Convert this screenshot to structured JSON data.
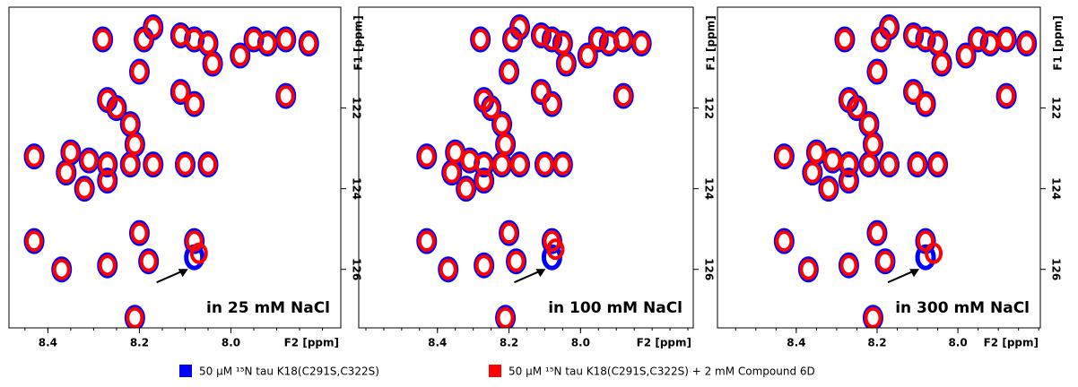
{
  "chart_data": [
    {
      "type": "scatter",
      "annotation": "in 25 mM NaCl",
      "x_label": "F2 [ppm]",
      "y_label": "F1 [ppm]",
      "xlim": [
        8.485,
        7.76
      ],
      "ylim": [
        119.5,
        127.45
      ],
      "y_inverted": true,
      "xticks": [
        8.4,
        8.2,
        {
          "value": 8,
          "label": "8.0"
        }
      ],
      "yticks": [
        122,
        124,
        126
      ],
      "series": [
        {
          "name": "50 µM ¹⁵N tau K18(C291S,C322S)",
          "color": "#0000ff",
          "x": [
            8.28,
            8.19,
            8.17,
            8.11,
            8.08,
            8.05,
            8.04,
            7.98,
            7.95,
            7.92,
            7.88,
            7.83,
            8.2,
            8.11,
            8.08,
            7.88,
            8.27,
            8.25,
            8.22,
            8.21,
            8.43,
            8.35,
            8.31,
            8.27,
            8.22,
            8.17,
            8.1,
            8.05,
            8.36,
            8.32,
            8.27,
            8.43,
            8.37,
            8.27,
            8.2,
            8.18,
            8.08,
            8.08,
            8.21
          ],
          "values": [
            120.3,
            120.3,
            120.0,
            120.2,
            120.3,
            120.4,
            120.9,
            120.7,
            120.3,
            120.4,
            120.3,
            120.4,
            121.1,
            121.6,
            121.9,
            121.7,
            121.8,
            122.0,
            122.4,
            122.9,
            123.2,
            123.1,
            123.3,
            123.4,
            123.4,
            123.4,
            123.4,
            123.4,
            123.6,
            124.0,
            123.8,
            125.3,
            126.0,
            125.9,
            125.1,
            125.8,
            125.3,
            125.7,
            127.2
          ]
        },
        {
          "name": "50 µM ¹⁵N tau K18(C291S,C322S) + 2 mM Compound 6D",
          "color": "#ff0000",
          "x": [
            8.28,
            8.19,
            8.17,
            8.11,
            8.08,
            8.05,
            8.04,
            7.98,
            7.95,
            7.92,
            7.88,
            7.83,
            8.2,
            8.11,
            8.08,
            7.88,
            8.27,
            8.25,
            8.22,
            8.21,
            8.43,
            8.35,
            8.31,
            8.27,
            8.22,
            8.17,
            8.1,
            8.05,
            8.36,
            8.32,
            8.27,
            8.43,
            8.37,
            8.27,
            8.2,
            8.18,
            8.08,
            8.07,
            8.21
          ],
          "values": [
            120.3,
            120.3,
            120.0,
            120.2,
            120.3,
            120.4,
            120.9,
            120.7,
            120.3,
            120.4,
            120.3,
            120.4,
            121.1,
            121.6,
            121.9,
            121.7,
            121.8,
            122.0,
            122.4,
            122.9,
            123.2,
            123.1,
            123.3,
            123.4,
            123.4,
            123.4,
            123.4,
            123.4,
            123.6,
            124.0,
            123.8,
            125.3,
            126.0,
            125.9,
            125.1,
            125.8,
            125.3,
            125.6,
            127.2
          ]
        }
      ]
    },
    {
      "type": "scatter",
      "annotation": "in 100 mM NaCl",
      "x_label": "F2 [ppm]",
      "y_label": "F1 [ppm]",
      "xlim": [
        8.62,
        7.685
      ],
      "ylim": [
        119.5,
        127.45
      ],
      "y_inverted": true,
      "xticks": [
        8.4,
        8.2,
        {
          "value": 8,
          "label": "8.0"
        }
      ],
      "yticks": [
        122,
        124,
        126
      ],
      "series": [
        {
          "color": "#0000ff",
          "x": [
            8.28,
            8.19,
            8.17,
            8.11,
            8.08,
            8.05,
            8.04,
            7.98,
            7.95,
            7.92,
            7.88,
            7.83,
            8.2,
            8.11,
            8.08,
            7.88,
            8.27,
            8.25,
            8.22,
            8.21,
            8.43,
            8.35,
            8.31,
            8.27,
            8.22,
            8.17,
            8.1,
            8.05,
            8.36,
            8.32,
            8.27,
            8.43,
            8.37,
            8.27,
            8.2,
            8.18,
            8.08,
            8.08,
            8.21
          ],
          "values": [
            120.3,
            120.3,
            120.0,
            120.2,
            120.3,
            120.4,
            120.9,
            120.7,
            120.3,
            120.4,
            120.3,
            120.4,
            121.1,
            121.6,
            121.9,
            121.7,
            121.8,
            122.0,
            122.4,
            122.9,
            123.2,
            123.1,
            123.3,
            123.4,
            123.4,
            123.4,
            123.4,
            123.4,
            123.6,
            124.0,
            123.8,
            125.3,
            126.0,
            125.9,
            125.1,
            125.8,
            125.3,
            125.7,
            127.2
          ]
        },
        {
          "color": "#ff0000",
          "x": [
            8.28,
            8.19,
            8.17,
            8.11,
            8.08,
            8.05,
            8.04,
            7.98,
            7.95,
            7.92,
            7.88,
            7.83,
            8.2,
            8.11,
            8.08,
            7.88,
            8.27,
            8.25,
            8.22,
            8.21,
            8.43,
            8.35,
            8.31,
            8.27,
            8.22,
            8.17,
            8.1,
            8.05,
            8.36,
            8.32,
            8.27,
            8.43,
            8.37,
            8.27,
            8.2,
            8.18,
            8.08,
            8.07,
            8.21
          ],
          "values": [
            120.3,
            120.3,
            120.0,
            120.2,
            120.3,
            120.4,
            120.9,
            120.7,
            120.3,
            120.4,
            120.3,
            120.4,
            121.1,
            121.6,
            121.9,
            121.7,
            121.8,
            122.0,
            122.4,
            122.9,
            123.2,
            123.1,
            123.3,
            123.4,
            123.4,
            123.4,
            123.4,
            123.4,
            123.6,
            124.0,
            123.8,
            125.3,
            126.0,
            125.9,
            125.1,
            125.8,
            125.3,
            125.5,
            127.2
          ]
        }
      ]
    },
    {
      "type": "scatter",
      "annotation": "in 300 mM NaCl",
      "x_label": "F2 [ppm]",
      "y_label": "F1 [ppm]",
      "xlim": [
        8.595,
        7.796
      ],
      "ylim": [
        119.5,
        127.45
      ],
      "y_inverted": true,
      "xticks": [
        8.4,
        8.2,
        {
          "value": 8,
          "label": "8.0"
        }
      ],
      "yticks": [
        122,
        124,
        126
      ],
      "series": [
        {
          "color": "#0000ff",
          "x": [
            8.28,
            8.19,
            8.17,
            8.11,
            8.08,
            8.05,
            8.04,
            7.98,
            7.95,
            7.92,
            7.88,
            7.83,
            8.2,
            8.11,
            8.08,
            7.88,
            8.27,
            8.25,
            8.22,
            8.21,
            8.43,
            8.35,
            8.31,
            8.27,
            8.22,
            8.17,
            8.1,
            8.05,
            8.36,
            8.32,
            8.27,
            8.43,
            8.37,
            8.27,
            8.2,
            8.18,
            8.08,
            8.08,
            8.21
          ],
          "values": [
            120.3,
            120.3,
            120.0,
            120.2,
            120.3,
            120.4,
            120.9,
            120.7,
            120.3,
            120.4,
            120.3,
            120.4,
            121.1,
            121.6,
            121.9,
            121.7,
            121.8,
            122.0,
            122.4,
            122.9,
            123.2,
            123.1,
            123.3,
            123.4,
            123.4,
            123.4,
            123.4,
            123.4,
            123.6,
            124.0,
            123.8,
            125.3,
            126.0,
            125.9,
            125.1,
            125.8,
            125.3,
            125.7,
            127.2
          ]
        },
        {
          "color": "#ff0000",
          "x": [
            8.28,
            8.19,
            8.17,
            8.11,
            8.08,
            8.05,
            8.04,
            7.98,
            7.95,
            7.92,
            7.88,
            7.83,
            8.2,
            8.11,
            8.08,
            7.88,
            8.27,
            8.25,
            8.22,
            8.21,
            8.43,
            8.35,
            8.31,
            8.27,
            8.22,
            8.17,
            8.1,
            8.05,
            8.36,
            8.32,
            8.27,
            8.43,
            8.37,
            8.27,
            8.2,
            8.18,
            8.08,
            8.06,
            8.21
          ],
          "values": [
            120.3,
            120.3,
            120.0,
            120.2,
            120.3,
            120.4,
            120.9,
            120.7,
            120.3,
            120.4,
            120.3,
            120.4,
            121.1,
            121.6,
            121.9,
            121.7,
            121.8,
            122.0,
            122.4,
            122.9,
            123.2,
            123.1,
            123.3,
            123.4,
            123.4,
            123.4,
            123.4,
            123.4,
            123.6,
            124.0,
            123.8,
            125.3,
            126.0,
            125.9,
            125.1,
            125.8,
            125.3,
            125.6,
            127.2
          ]
        }
      ]
    }
  ]
}
